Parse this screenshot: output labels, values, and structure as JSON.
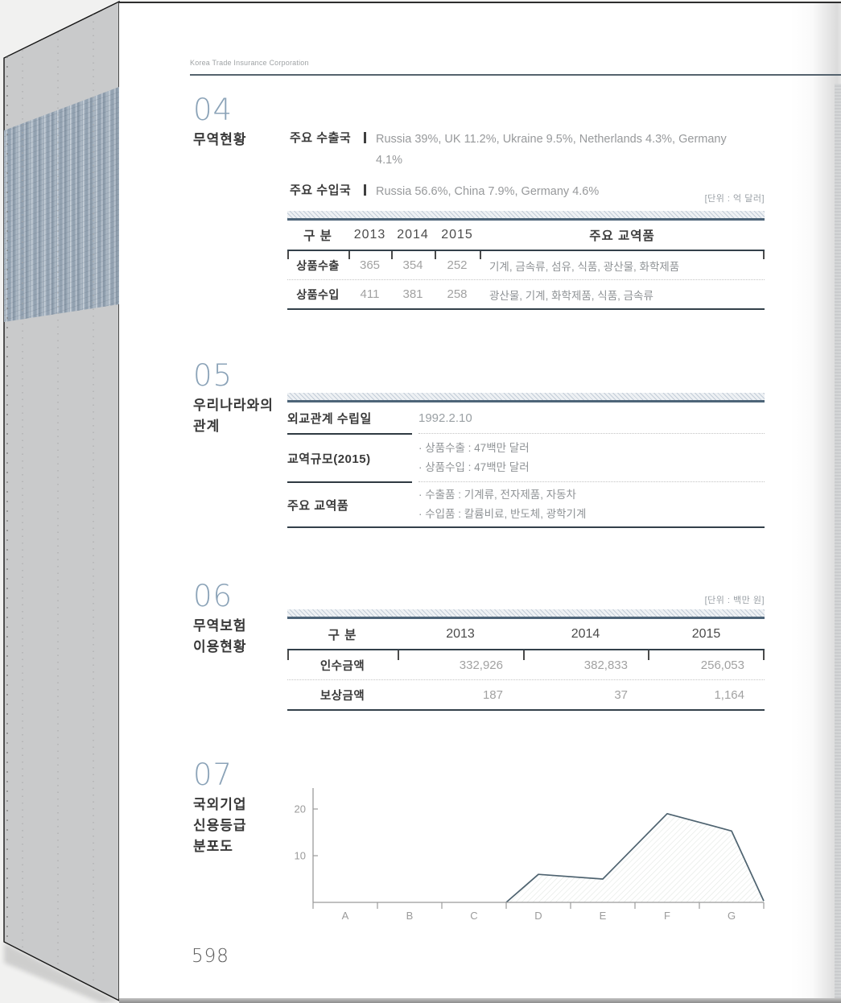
{
  "masthead": {
    "text": "Korea Trade Insurance Corporation"
  },
  "sections": {
    "s04": {
      "number": "04",
      "title": "무역현황",
      "rows": [
        {
          "label": "주요 수출국",
          "value": "Russia 39%, UK 11.2%, Ukraine 9.5%, Netherlands 4.3%, Germany 4.1%"
        },
        {
          "label": "주요 수입국",
          "value": "Russia 56.6%, China 7.9%, Germany 4.6%"
        }
      ],
      "unit_note": "[단위 : 억 달러]",
      "table": {
        "headers": [
          "구 분",
          "2013",
          "2014",
          "2015",
          "주요 교역품"
        ],
        "rows": [
          {
            "label": "상품수출",
            "values": [
              "365",
              "354",
              "252"
            ],
            "items": "기계, 금속류, 섬유, 식품, 광산물, 화학제품"
          },
          {
            "label": "상품수입",
            "values": [
              "411",
              "381",
              "258"
            ],
            "items": "광산물, 기계, 화학제품, 식품, 금속류"
          }
        ]
      }
    },
    "s05": {
      "number": "05",
      "title_line1": "우리나라와의",
      "title_line2": "관계",
      "rows": [
        {
          "label": "외교관계 수립일",
          "lines": [
            "1992.2.10"
          ]
        },
        {
          "label": "교역규모(2015)",
          "lines": [
            "· 상품수출 : 47백만 달러",
            "· 상품수입 : 47백만 달러"
          ]
        },
        {
          "label": "주요 교역품",
          "lines": [
            "· 수출품 : 기계류, 전자제품, 자동차",
            "· 수입품 : 칼륨비료, 반도체, 광학기계"
          ]
        }
      ]
    },
    "s06": {
      "number": "06",
      "title_line1": "무역보험",
      "title_line2": "이용현황",
      "unit_note": "[단위 : 백만 원]",
      "table": {
        "headers": [
          "구 분",
          "2013",
          "2014",
          "2015"
        ],
        "rows": [
          {
            "label": "인수금액",
            "values": [
              "332,926",
              "382,833",
              "256,053"
            ]
          },
          {
            "label": "보상금액",
            "values": [
              "187",
              "37",
              "1,164"
            ]
          }
        ]
      }
    },
    "s07": {
      "number": "07",
      "title_lines": [
        "국외기업",
        "신용등급",
        "분포도"
      ]
    }
  },
  "chart_data": {
    "type": "area",
    "title": "국외기업 신용등급 분포도",
    "categories": [
      "A",
      "B",
      "C",
      "D",
      "E",
      "F",
      "G"
    ],
    "values": [
      0,
      0,
      0,
      6,
      5,
      19,
      15.3
    ],
    "line_points": [
      [
        3.0,
        0
      ],
      [
        3.5,
        6
      ],
      [
        4.5,
        5
      ],
      [
        5.5,
        19
      ],
      [
        6.5,
        15.3
      ],
      [
        7.0,
        0.3
      ]
    ],
    "yticks": [
      10,
      20
    ],
    "ylim": [
      0,
      24
    ],
    "xlabel": "",
    "ylabel": "",
    "grid": false,
    "legend": "none",
    "line_color": "#4e6370",
    "axis_color": "#9b9b9b",
    "hatch_fill": true
  },
  "page_number": "598",
  "colors": {
    "accent_steel": "#8ba3b8",
    "band_border": "#4d6478",
    "table_line": "#33404a",
    "value_gray": "#97999b"
  }
}
